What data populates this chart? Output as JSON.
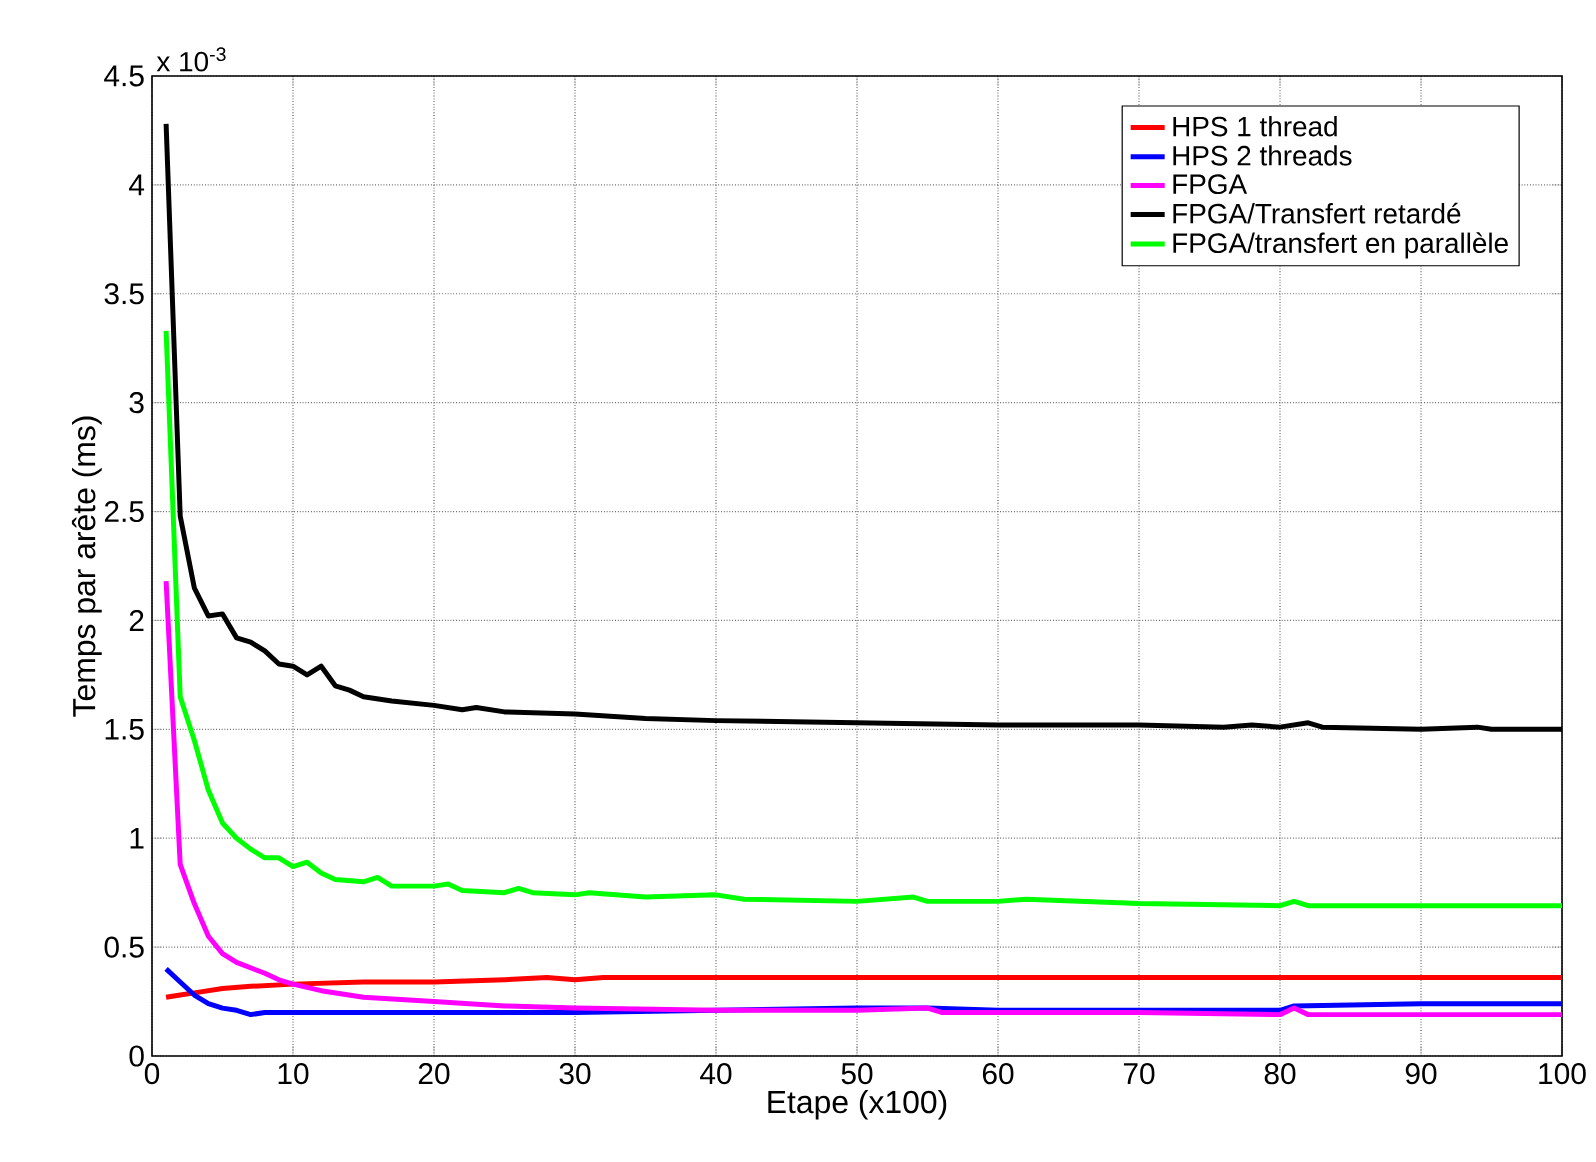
{
  "chart_data": {
    "type": "line",
    "xlabel": "Etape (x100)",
    "ylabel": "Temps par arête (ms)",
    "annotations": [
      "x 10$^{-3}$"
    ],
    "xlim": [
      0,
      100
    ],
    "xticks": [
      0,
      10,
      20,
      30,
      40,
      50,
      60,
      70,
      80,
      90,
      100
    ],
    "ylim": [
      0,
      4.5
    ],
    "yticks": [
      0,
      0.5,
      1,
      1.5,
      2,
      2.5,
      3,
      3.5,
      4,
      4.5
    ],
    "grid": true,
    "legend": "top right",
    "marker": "none",
    "line_style": "solid",
    "series": [
      {
        "name": "HPS 1 thread",
        "color": "#ff0000",
        "x": [
          1,
          2,
          3,
          5,
          7,
          10,
          15,
          20,
          25,
          28,
          30,
          32,
          40,
          50,
          60,
          70,
          80,
          100
        ],
        "values": [
          0.27,
          0.28,
          0.29,
          0.31,
          0.32,
          0.33,
          0.34,
          0.34,
          0.35,
          0.36,
          0.35,
          0.36,
          0.36,
          0.36,
          0.36,
          0.36,
          0.36,
          0.36
        ]
      },
      {
        "name": "HPS 2 threads",
        "color": "#0000ff",
        "x": [
          1,
          2,
          3,
          4,
          5,
          6,
          7,
          8,
          10,
          15,
          20,
          30,
          50,
          55,
          60,
          70,
          80,
          81,
          90,
          100
        ],
        "values": [
          0.4,
          0.34,
          0.28,
          0.24,
          0.22,
          0.21,
          0.19,
          0.2,
          0.2,
          0.2,
          0.2,
          0.2,
          0.22,
          0.22,
          0.21,
          0.21,
          0.21,
          0.23,
          0.24,
          0.24
        ]
      },
      {
        "name": "FPGA",
        "color": "#ff00ff",
        "x": [
          1,
          2,
          3,
          4,
          5,
          6,
          8,
          9,
          10,
          12,
          15,
          20,
          25,
          30,
          40,
          50,
          55,
          56,
          70,
          80,
          81,
          82,
          100
        ],
        "values": [
          2.18,
          0.88,
          0.7,
          0.55,
          0.47,
          0.43,
          0.38,
          0.35,
          0.33,
          0.3,
          0.27,
          0.25,
          0.23,
          0.22,
          0.21,
          0.21,
          0.22,
          0.2,
          0.2,
          0.19,
          0.22,
          0.19,
          0.19
        ]
      },
      {
        "name": "FPGA/Transfert retardé",
        "color": "#000000",
        "x": [
          1,
          2,
          3,
          4,
          5,
          6,
          7,
          8,
          9,
          10,
          11,
          12,
          13,
          14,
          15,
          17,
          20,
          22,
          23,
          25,
          30,
          35,
          40,
          50,
          60,
          70,
          76,
          78,
          80,
          82,
          83,
          90,
          94,
          95,
          100
        ],
        "values": [
          4.28,
          2.48,
          2.15,
          2.02,
          2.03,
          1.92,
          1.9,
          1.86,
          1.8,
          1.79,
          1.75,
          1.79,
          1.7,
          1.68,
          1.65,
          1.63,
          1.61,
          1.59,
          1.6,
          1.58,
          1.57,
          1.55,
          1.54,
          1.53,
          1.52,
          1.52,
          1.51,
          1.52,
          1.51,
          1.53,
          1.51,
          1.5,
          1.51,
          1.5,
          1.5
        ]
      },
      {
        "name": "FPGA/transfert en parallèle",
        "color": "#00ff00",
        "x": [
          1,
          2,
          3,
          4,
          5,
          6,
          7,
          8,
          9,
          10,
          11,
          12,
          13,
          15,
          16,
          17,
          20,
          21,
          22,
          25,
          26,
          27,
          30,
          31,
          35,
          40,
          42,
          50,
          54,
          55,
          60,
          62,
          70,
          80,
          81,
          82,
          90,
          100
        ],
        "values": [
          3.33,
          1.65,
          1.45,
          1.22,
          1.07,
          1.0,
          0.95,
          0.91,
          0.91,
          0.87,
          0.89,
          0.84,
          0.81,
          0.8,
          0.82,
          0.78,
          0.78,
          0.79,
          0.76,
          0.75,
          0.77,
          0.75,
          0.74,
          0.75,
          0.73,
          0.74,
          0.72,
          0.71,
          0.73,
          0.71,
          0.71,
          0.72,
          0.7,
          0.69,
          0.71,
          0.69,
          0.69,
          0.69
        ]
      }
    ]
  }
}
